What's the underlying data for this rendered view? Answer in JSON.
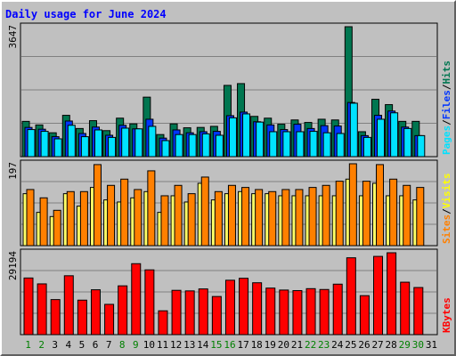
{
  "title": "Daily usage for June 2024",
  "colors": {
    "hits": "#007650",
    "files": "#0035ff",
    "pages": "#00e2ff",
    "visits": "#ff9900",
    "sites": "#ff8000",
    "sites_alt": "#ffff66",
    "kbytes": "#ff0000",
    "weekend_day": "#008000",
    "weekday_day": "#000000"
  },
  "chart_data": [
    {
      "type": "bar",
      "name": "hits_files_pages",
      "categories": [
        "1",
        "2",
        "3",
        "4",
        "5",
        "6",
        "7",
        "8",
        "9",
        "10",
        "11",
        "12",
        "13",
        "14",
        "15",
        "16",
        "17",
        "18",
        "19",
        "20",
        "21",
        "22",
        "23",
        "24",
        "25",
        "26",
        "27",
        "28",
        "29",
        "30",
        "31"
      ],
      "max_label": "3647",
      "ylim": [
        0,
        3647
      ],
      "series": [
        {
          "name": "Hits",
          "values": [
            990,
            890,
            670,
            1160,
            790,
            1010,
            730,
            1080,
            920,
            1670,
            620,
            920,
            810,
            820,
            850,
            2000,
            2050,
            1130,
            1080,
            910,
            1030,
            960,
            1050,
            1030,
            3647,
            700,
            1610,
            1460,
            990,
            990,
            0
          ]
        },
        {
          "name": "Files",
          "values": [
            820,
            770,
            560,
            1000,
            650,
            830,
            600,
            880,
            780,
            1050,
            520,
            750,
            670,
            700,
            710,
            1150,
            1250,
            980,
            890,
            760,
            910,
            790,
            870,
            860,
            1520,
            590,
            1160,
            1280,
            830,
            590,
            0
          ]
        },
        {
          "name": "Pages",
          "values": [
            760,
            710,
            500,
            880,
            560,
            750,
            540,
            800,
            780,
            850,
            450,
            620,
            620,
            640,
            600,
            1090,
            1200,
            970,
            700,
            700,
            700,
            710,
            670,
            650,
            1500,
            540,
            1050,
            1230,
            790,
            590,
            0
          ]
        }
      ],
      "legend": [
        "Pages",
        "Files",
        "Hits"
      ]
    },
    {
      "type": "bar",
      "name": "visits_sites",
      "categories": [
        "1",
        "2",
        "3",
        "4",
        "5",
        "6",
        "7",
        "8",
        "9",
        "10",
        "11",
        "12",
        "13",
        "14",
        "15",
        "16",
        "17",
        "18",
        "19",
        "20",
        "21",
        "22",
        "23",
        "24",
        "25",
        "26",
        "27",
        "28",
        "29",
        "30",
        "31"
      ],
      "max_label": "197",
      "ylim": [
        0,
        197
      ],
      "series": [
        {
          "name": "Visits",
          "values": [
            125,
            80,
            70,
            125,
            95,
            140,
            110,
            105,
            115,
            130,
            80,
            120,
            105,
            150,
            110,
            125,
            130,
            125,
            125,
            120,
            120,
            120,
            120,
            120,
            160,
            120,
            150,
            120,
            120,
            110,
            0
          ]
        },
        {
          "name": "Sites",
          "values": [
            135,
            115,
            85,
            130,
            130,
            195,
            145,
            160,
            135,
            180,
            120,
            145,
            125,
            165,
            130,
            145,
            140,
            135,
            130,
            135,
            135,
            140,
            145,
            155,
            197,
            155,
            195,
            160,
            145,
            140,
            0
          ]
        }
      ],
      "legend": [
        "Sites",
        "Visits"
      ]
    },
    {
      "type": "bar",
      "name": "kbytes",
      "categories": [
        "1",
        "2",
        "3",
        "4",
        "5",
        "6",
        "7",
        "8",
        "9",
        "10",
        "11",
        "12",
        "13",
        "14",
        "15",
        "16",
        "17",
        "18",
        "19",
        "20",
        "21",
        "22",
        "23",
        "24",
        "25",
        "26",
        "27",
        "28",
        "29",
        "30",
        "31"
      ],
      "max_label": "29194",
      "ylim": [
        0,
        29194
      ],
      "series": [
        {
          "name": "KBytes",
          "values": [
            20200,
            18100,
            12500,
            21000,
            12300,
            16000,
            10800,
            17400,
            25300,
            23100,
            8500,
            15800,
            15600,
            16300,
            13600,
            19400,
            20100,
            18500,
            16600,
            15900,
            15700,
            16400,
            16100,
            18000,
            27400,
            13900,
            27900,
            29194,
            18700,
            16800,
            0
          ]
        }
      ],
      "legend": [
        "KBytes"
      ]
    }
  ],
  "days": [
    {
      "label": "1",
      "weekend": true
    },
    {
      "label": "2",
      "weekend": true
    },
    {
      "label": "3",
      "weekend": false
    },
    {
      "label": "4",
      "weekend": false
    },
    {
      "label": "5",
      "weekend": false
    },
    {
      "label": "6",
      "weekend": false
    },
    {
      "label": "7",
      "weekend": false
    },
    {
      "label": "8",
      "weekend": true
    },
    {
      "label": "9",
      "weekend": true
    },
    {
      "label": "10",
      "weekend": false
    },
    {
      "label": "11",
      "weekend": false
    },
    {
      "label": "12",
      "weekend": false
    },
    {
      "label": "13",
      "weekend": false
    },
    {
      "label": "14",
      "weekend": false
    },
    {
      "label": "15",
      "weekend": true
    },
    {
      "label": "16",
      "weekend": true
    },
    {
      "label": "17",
      "weekend": false
    },
    {
      "label": "18",
      "weekend": false
    },
    {
      "label": "19",
      "weekend": false
    },
    {
      "label": "20",
      "weekend": false
    },
    {
      "label": "21",
      "weekend": false
    },
    {
      "label": "22",
      "weekend": true
    },
    {
      "label": "23",
      "weekend": true
    },
    {
      "label": "24",
      "weekend": false
    },
    {
      "label": "25",
      "weekend": false
    },
    {
      "label": "26",
      "weekend": false
    },
    {
      "label": "27",
      "weekend": false
    },
    {
      "label": "28",
      "weekend": false
    },
    {
      "label": "29",
      "weekend": true
    },
    {
      "label": "30",
      "weekend": true
    },
    {
      "label": "31",
      "weekend": false
    }
  ]
}
